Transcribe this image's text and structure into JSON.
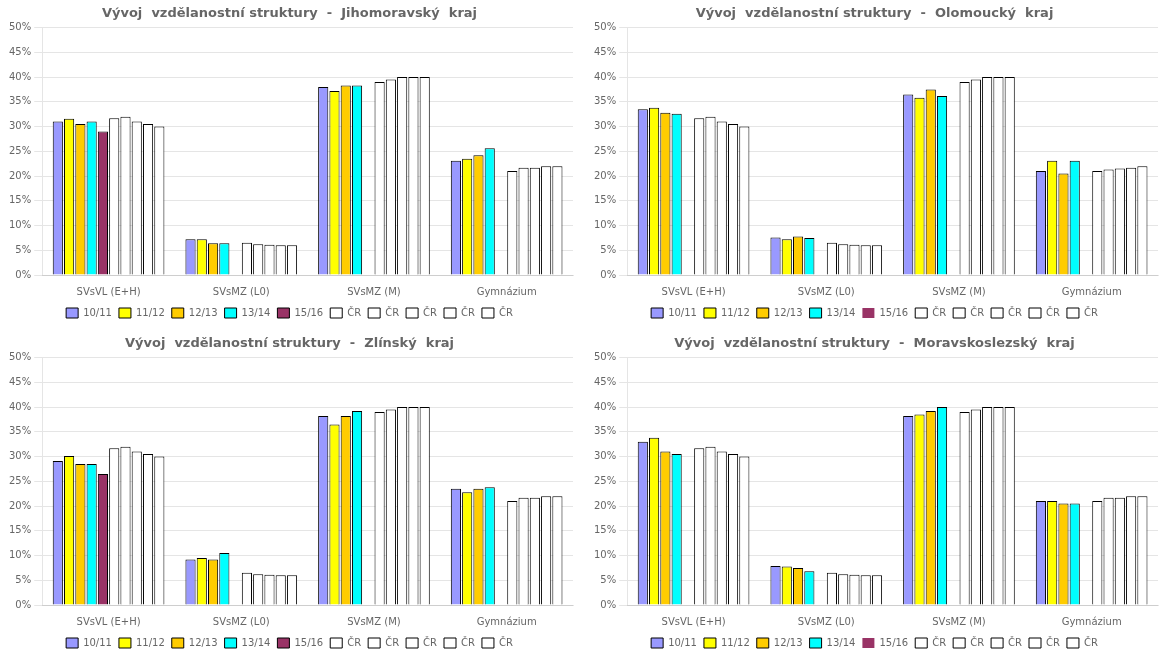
{
  "chart_data": [
    {
      "type": "bar",
      "title": "Vývoj  vzdělanostní struktury  -  Jihomoravský  kraj",
      "categories": [
        "SVsVL (E+H)",
        "SVsMZ (L0)",
        "SVsMZ (M)",
        "Gymnázium"
      ],
      "series": [
        {
          "name": "10/11",
          "color": "#9999FF",
          "values": [
            0.31,
            0.072,
            0.38,
            0.231
          ]
        },
        {
          "name": "11/12",
          "color": "#FFFF00",
          "values": [
            0.316,
            0.072,
            0.372,
            0.235
          ]
        },
        {
          "name": "12/13",
          "color": "#FFCC00",
          "values": [
            0.305,
            0.064,
            0.383,
            0.242
          ]
        },
        {
          "name": "13/14",
          "color": "#00FFFF",
          "values": [
            0.31,
            0.064,
            0.383,
            0.256
          ]
        },
        {
          "name": "15/16",
          "color": "#993366",
          "values": [
            0.29,
            0.0,
            0.0,
            0.0
          ]
        },
        {
          "name": "ČR",
          "color": "#FFFFFF",
          "values": [
            0.317,
            0.065,
            0.39,
            0.21
          ]
        },
        {
          "name": "ČR",
          "color": "#FFFFFF",
          "values": [
            0.32,
            0.062,
            0.395,
            0.217
          ]
        },
        {
          "name": "ČR",
          "color": "#FFFFFF",
          "values": [
            0.31,
            0.061,
            0.4,
            0.217
          ]
        },
        {
          "name": "ČR",
          "color": "#FFFFFF",
          "values": [
            0.305,
            0.06,
            0.4,
            0.22
          ]
        },
        {
          "name": "ČR",
          "color": "#FFFFFF",
          "values": [
            0.3,
            0.06,
            0.4,
            0.22
          ]
        }
      ],
      "ylim": [
        0,
        0.5
      ],
      "yticks": [
        {
          "value": 0.0,
          "label": "0%"
        },
        {
          "value": 0.05,
          "label": "5%"
        },
        {
          "value": 0.1,
          "label": "10%"
        },
        {
          "value": 0.15,
          "label": "15%"
        },
        {
          "value": 0.2,
          "label": "20%"
        },
        {
          "value": 0.25,
          "label": "25%"
        },
        {
          "value": 0.3,
          "label": "30%"
        },
        {
          "value": 0.35,
          "label": "35%"
        },
        {
          "value": 0.4,
          "label": "40%"
        },
        {
          "value": 0.45,
          "label": "45%"
        },
        {
          "value": 0.5,
          "label": "50%"
        }
      ],
      "grid": true,
      "legend": "bottom"
    },
    {
      "type": "bar",
      "title": "Vývoj  vzdělanostní struktury  -  Olomoucký  kraj",
      "categories": [
        "SVsVL (E+H)",
        "SVsMZ (L0)",
        "SVsMZ (M)",
        "Gymnázium"
      ],
      "series": [
        {
          "name": "10/11",
          "color": "#9999FF",
          "values": [
            0.335,
            0.076,
            0.365,
            0.21
          ]
        },
        {
          "name": "11/12",
          "color": "#FFFF00",
          "values": [
            0.338,
            0.072,
            0.358,
            0.231
          ]
        },
        {
          "name": "12/13",
          "color": "#FFCC00",
          "values": [
            0.328,
            0.078,
            0.375,
            0.205
          ]
        },
        {
          "name": "13/14",
          "color": "#00FFFF",
          "values": [
            0.326,
            0.075,
            0.362,
            0.231
          ]
        },
        {
          "name": "15/16",
          "color": "#993366",
          "values": [
            0.0,
            0.0,
            0.0,
            0.0
          ]
        },
        {
          "name": "ČR",
          "color": "#FFFFFF",
          "values": [
            0.317,
            0.065,
            0.39,
            0.21
          ]
        },
        {
          "name": "ČR",
          "color": "#FFFFFF",
          "values": [
            0.32,
            0.062,
            0.395,
            0.213
          ]
        },
        {
          "name": "ČR",
          "color": "#FFFFFF",
          "values": [
            0.31,
            0.061,
            0.4,
            0.215
          ]
        },
        {
          "name": "ČR",
          "color": "#FFFFFF",
          "values": [
            0.305,
            0.06,
            0.4,
            0.217
          ]
        },
        {
          "name": "ČR",
          "color": "#FFFFFF",
          "values": [
            0.3,
            0.06,
            0.4,
            0.22
          ]
        }
      ],
      "ylim": [
        0,
        0.5
      ],
      "yticks": [
        {
          "value": 0.0,
          "label": "0%"
        },
        {
          "value": 0.05,
          "label": "5%"
        },
        {
          "value": 0.1,
          "label": "10%"
        },
        {
          "value": 0.15,
          "label": "15%"
        },
        {
          "value": 0.2,
          "label": "20%"
        },
        {
          "value": 0.25,
          "label": "25%"
        },
        {
          "value": 0.3,
          "label": "30%"
        },
        {
          "value": 0.35,
          "label": "35%"
        },
        {
          "value": 0.4,
          "label": "40%"
        },
        {
          "value": 0.45,
          "label": "45%"
        },
        {
          "value": 0.5,
          "label": "50%"
        }
      ],
      "grid": true,
      "legend": "bottom"
    },
    {
      "type": "bar",
      "title": "Vývoj  vzdělanostní struktury  -  Zlínský  kraj",
      "categories": [
        "SVsVL (E+H)",
        "SVsMZ (L0)",
        "SVsMZ (M)",
        "Gymnázium"
      ],
      "series": [
        {
          "name": "10/11",
          "color": "#9999FF",
          "values": [
            0.291,
            0.092,
            0.382,
            0.235
          ]
        },
        {
          "name": "11/12",
          "color": "#FFFF00",
          "values": [
            0.301,
            0.095,
            0.365,
            0.228
          ]
        },
        {
          "name": "12/13",
          "color": "#FFCC00",
          "values": [
            0.285,
            0.092,
            0.382,
            0.235
          ]
        },
        {
          "name": "13/14",
          "color": "#00FFFF",
          "values": [
            0.285,
            0.105,
            0.392,
            0.238
          ]
        },
        {
          "name": "15/16",
          "color": "#993366",
          "values": [
            0.265,
            0.0,
            0.0,
            0.0
          ]
        },
        {
          "name": "ČR",
          "color": "#FFFFFF",
          "values": [
            0.317,
            0.065,
            0.39,
            0.21
          ]
        },
        {
          "name": "ČR",
          "color": "#FFFFFF",
          "values": [
            0.32,
            0.062,
            0.395,
            0.217
          ]
        },
        {
          "name": "ČR",
          "color": "#FFFFFF",
          "values": [
            0.31,
            0.061,
            0.4,
            0.217
          ]
        },
        {
          "name": "ČR",
          "color": "#FFFFFF",
          "values": [
            0.305,
            0.06,
            0.4,
            0.22
          ]
        },
        {
          "name": "ČR",
          "color": "#FFFFFF",
          "values": [
            0.3,
            0.06,
            0.4,
            0.22
          ]
        }
      ],
      "ylim": [
        0,
        0.5
      ],
      "yticks": [
        {
          "value": 0.0,
          "label": "0%"
        },
        {
          "value": 0.05,
          "label": "5%"
        },
        {
          "value": 0.1,
          "label": "10%"
        },
        {
          "value": 0.15,
          "label": "15%"
        },
        {
          "value": 0.2,
          "label": "20%"
        },
        {
          "value": 0.25,
          "label": "25%"
        },
        {
          "value": 0.3,
          "label": "30%"
        },
        {
          "value": 0.35,
          "label": "35%"
        },
        {
          "value": 0.4,
          "label": "40%"
        },
        {
          "value": 0.45,
          "label": "45%"
        },
        {
          "value": 0.5,
          "label": "50%"
        }
      ],
      "grid": true,
      "legend": "bottom"
    },
    {
      "type": "bar",
      "title": "Vývoj  vzdělanostní struktury  -  Moravskoslezský  kraj",
      "categories": [
        "SVsVL (E+H)",
        "SVsMZ (L0)",
        "SVsMZ (M)",
        "Gymnázium"
      ],
      "series": [
        {
          "name": "10/11",
          "color": "#9999FF",
          "values": [
            0.33,
            0.079,
            0.382,
            0.21
          ]
        },
        {
          "name": "11/12",
          "color": "#FFFF00",
          "values": [
            0.338,
            0.078,
            0.385,
            0.21
          ]
        },
        {
          "name": "12/13",
          "color": "#FFCC00",
          "values": [
            0.31,
            0.075,
            0.392,
            0.205
          ]
        },
        {
          "name": "13/14",
          "color": "#00FFFF",
          "values": [
            0.305,
            0.068,
            0.4,
            0.205
          ]
        },
        {
          "name": "15/16",
          "color": "#993366",
          "values": [
            0.0,
            0.0,
            0.0,
            0.0
          ]
        },
        {
          "name": "ČR",
          "color": "#FFFFFF",
          "values": [
            0.317,
            0.065,
            0.39,
            0.21
          ]
        },
        {
          "name": "ČR",
          "color": "#FFFFFF",
          "values": [
            0.32,
            0.062,
            0.395,
            0.217
          ]
        },
        {
          "name": "ČR",
          "color": "#FFFFFF",
          "values": [
            0.31,
            0.061,
            0.4,
            0.217
          ]
        },
        {
          "name": "ČR",
          "color": "#FFFFFF",
          "values": [
            0.305,
            0.06,
            0.4,
            0.22
          ]
        },
        {
          "name": "ČR",
          "color": "#FFFFFF",
          "values": [
            0.3,
            0.06,
            0.4,
            0.22
          ]
        }
      ],
      "ylim": [
        0,
        0.5
      ],
      "yticks": [
        {
          "value": 0.0,
          "label": "0%"
        },
        {
          "value": 0.05,
          "label": "5%"
        },
        {
          "value": 0.1,
          "label": "10%"
        },
        {
          "value": 0.15,
          "label": "15%"
        },
        {
          "value": 0.2,
          "label": "20%"
        },
        {
          "value": 0.25,
          "label": "25%"
        },
        {
          "value": 0.3,
          "label": "30%"
        },
        {
          "value": 0.35,
          "label": "35%"
        },
        {
          "value": 0.4,
          "label": "40%"
        },
        {
          "value": 0.45,
          "label": "45%"
        },
        {
          "value": 0.5,
          "label": "50%"
        }
      ],
      "grid": true,
      "legend": "bottom"
    }
  ]
}
